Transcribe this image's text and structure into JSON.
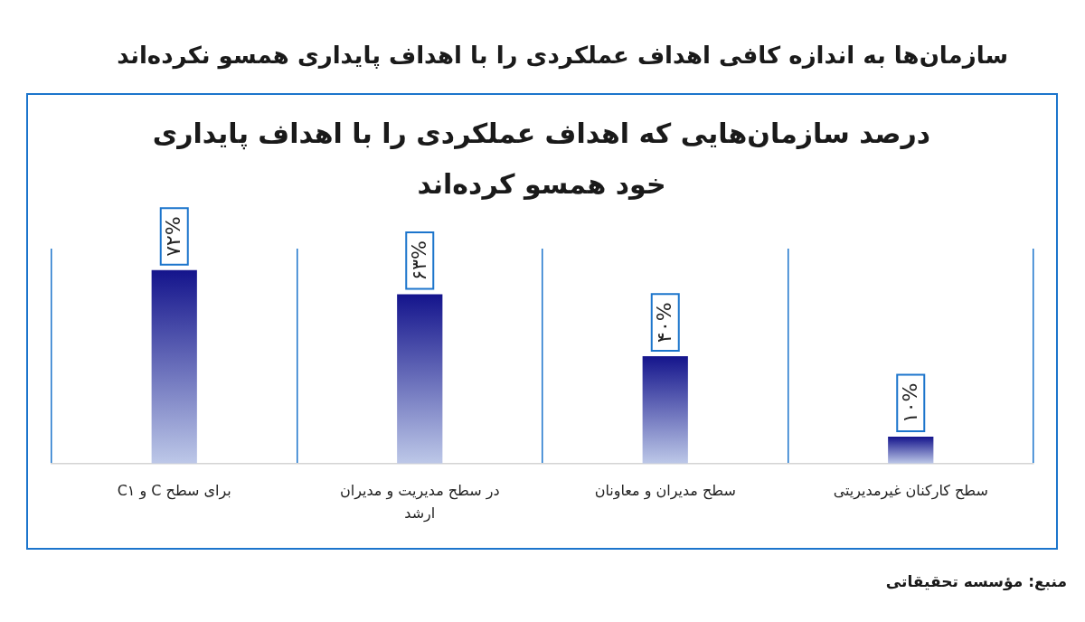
{
  "chart_data": {
    "type": "bar",
    "title": "سازمان‌ها به اندازه کافی اهداف عملکردی را با اهداف پایداری همسو نکرده‌اند",
    "subtitle": "درصد سازمان‌هایی که اهداف عملکردی را با اهداف پایداری خود همسو کرده‌اند",
    "categories": [
      "برای سطح C و C۱",
      "در سطح مدیریت و مدیران ارشد",
      "سطح مدیران و معاونان",
      "سطح کارکنان غیرمدیریتی"
    ],
    "values": [
      72,
      63,
      40,
      10
    ],
    "value_labels": [
      "۷۲%",
      "۶۳%",
      "۴۰%",
      "۱۰%"
    ],
    "color": "#14148c",
    "grid": "x",
    "annotations": [
      "منبع: مؤسسه تحقیقاتی"
    ]
  }
}
